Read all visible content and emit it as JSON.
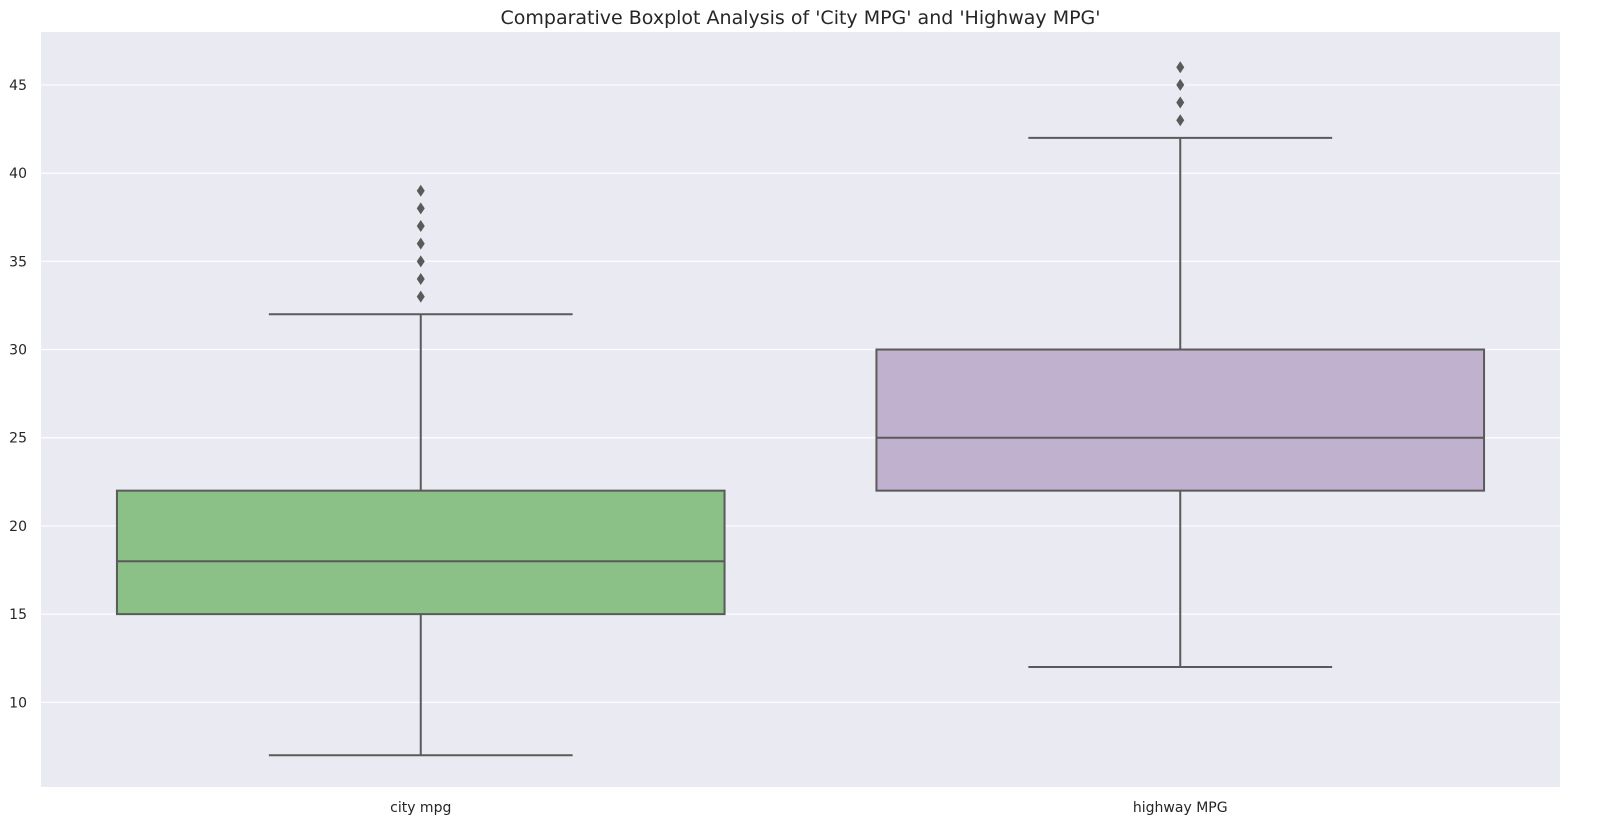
{
  "chart_data": {
    "type": "boxplot",
    "title": "Comparative Boxplot Analysis of 'City MPG' and 'Highway MPG'",
    "xlabel": "",
    "ylabel": "",
    "ylim": [
      5.2,
      48.0
    ],
    "yticks": [
      10,
      15,
      20,
      25,
      30,
      35,
      40,
      45
    ],
    "grid": true,
    "categories": [
      "city mpg",
      "highway MPG"
    ],
    "boxes": [
      {
        "category": "city mpg",
        "whisker_low": 7,
        "q1": 15,
        "median": 18,
        "q3": 22,
        "whisker_high": 32,
        "outliers": [
          33,
          34,
          35,
          36,
          37,
          38,
          39
        ],
        "color": "#8bc087"
      },
      {
        "category": "highway MPG",
        "whisker_low": 12,
        "q1": 22,
        "median": 25,
        "q3": 30,
        "whisker_high": 42,
        "outliers": [
          43,
          44,
          45,
          46
        ],
        "color": "#c0b1cf"
      }
    ],
    "colors": {
      "background": "#eaeaf2",
      "grid": "#ffffff",
      "line": "#5a5a5a",
      "outlier": "#5a5a5a"
    }
  }
}
